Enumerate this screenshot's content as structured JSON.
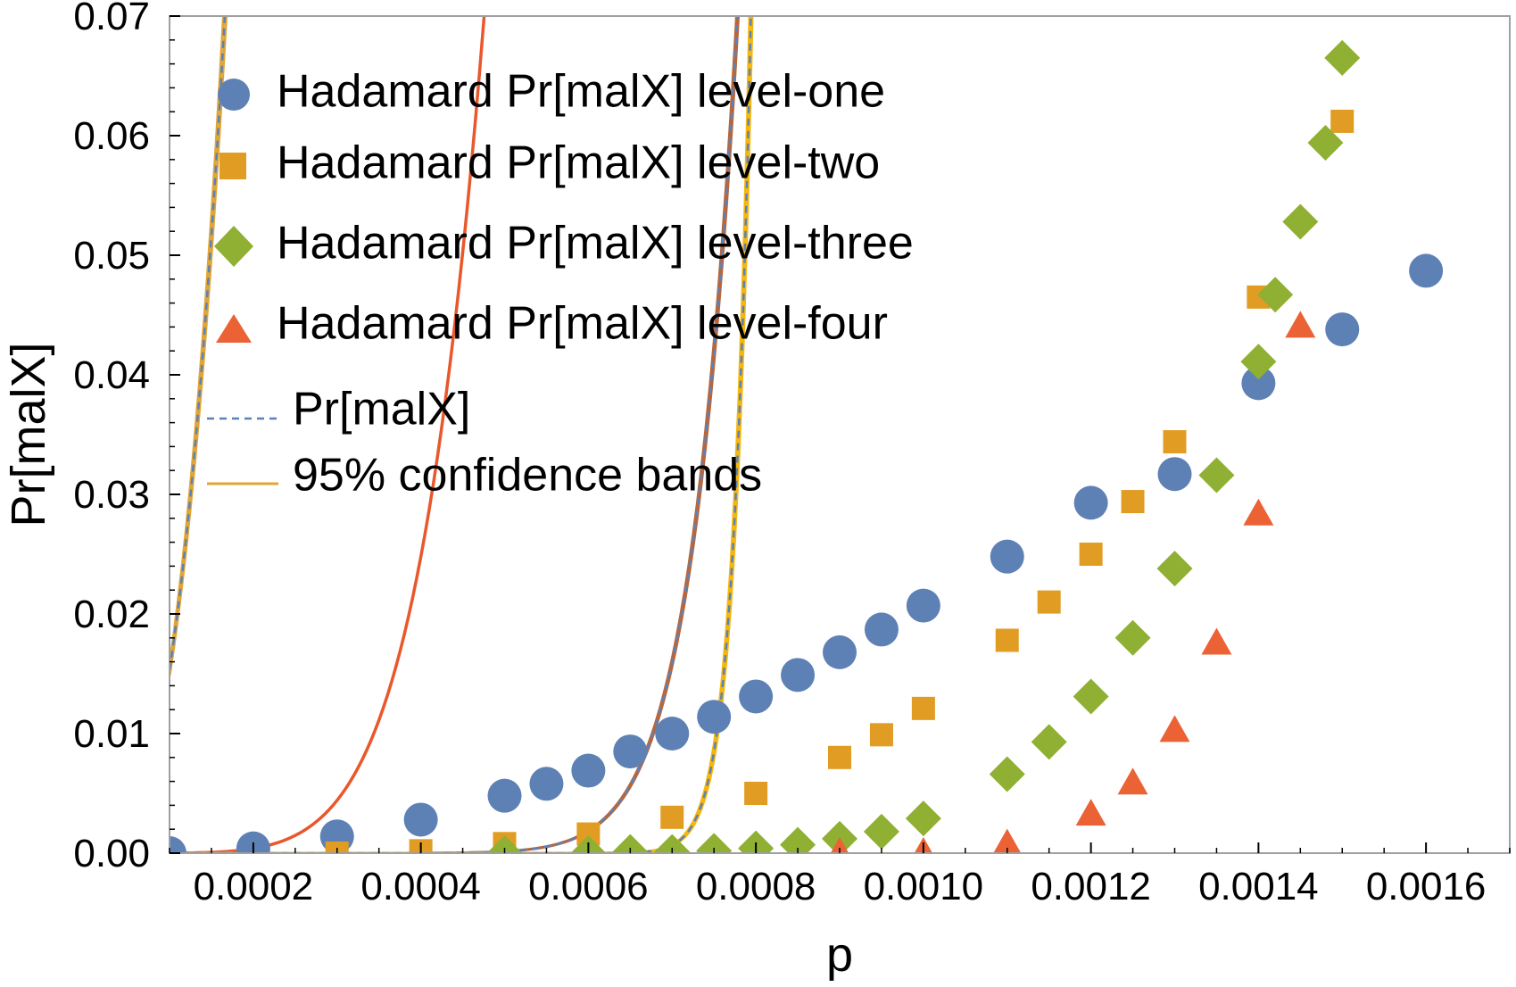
{
  "chart_data": {
    "type": "scatter",
    "xlabel": "p",
    "ylabel": "Pr[malX]",
    "xlim": [
      0.0001,
      0.0017
    ],
    "ylim": [
      0,
      0.07
    ],
    "x_ticks": [
      0.0002,
      0.0004,
      0.0006,
      0.0008,
      0.001,
      0.0012,
      0.0014,
      0.0016
    ],
    "x_tick_labels": [
      "0.0002",
      "0.0004",
      "0.0006",
      "0.0008",
      "0.0010",
      "0.0012",
      "0.0014",
      "0.0016"
    ],
    "y_ticks": [
      0,
      0.01,
      0.02,
      0.03,
      0.04,
      0.05,
      0.06,
      0.07
    ],
    "y_tick_labels": [
      "0.00",
      "0.01",
      "0.02",
      "0.03",
      "0.04",
      "0.05",
      "0.06",
      "0.07"
    ],
    "legend_position": "top-left",
    "series": [
      {
        "name": "Hadamard Pr[malX] level-one",
        "marker": "circle",
        "color": "#5E81B5",
        "fit_color": "#E1A535",
        "fit": {
          "a": 15300000000.0,
          "n": 3.0
        },
        "points": [
          [
            0.0001,
            0.0
          ],
          [
            0.0002,
            0.0004
          ],
          [
            0.0003,
            0.0014
          ],
          [
            0.0004,
            0.0028
          ],
          [
            0.0005,
            0.0048
          ],
          [
            0.00055,
            0.0058
          ],
          [
            0.0006,
            0.0069
          ],
          [
            0.00065,
            0.0085
          ],
          [
            0.0007,
            0.01
          ],
          [
            0.00075,
            0.0114
          ],
          [
            0.0008,
            0.0131
          ],
          [
            0.00085,
            0.0149
          ],
          [
            0.0009,
            0.0168
          ],
          [
            0.00095,
            0.0187
          ],
          [
            0.001,
            0.0207
          ],
          [
            0.0011,
            0.0248
          ],
          [
            0.0012,
            0.0293
          ],
          [
            0.0013,
            0.0317
          ],
          [
            0.0014,
            0.0393
          ],
          [
            0.0015,
            0.0438
          ],
          [
            0.0016,
            0.0487
          ]
        ]
      },
      {
        "name": "Hadamard Pr[malX] level-two",
        "marker": "square",
        "color": "#E19C24",
        "fit_color": "#E8582C",
        "fit": {
          "a": 6.05e+18,
          "n": 6.0
        },
        "points": [
          [
            0.0003,
            0.0
          ],
          [
            0.0004,
            0.0002
          ],
          [
            0.0005,
            0.0008
          ],
          [
            0.0006,
            0.0016
          ],
          [
            0.0007,
            0.003
          ],
          [
            0.0008,
            0.005
          ],
          [
            0.0009,
            0.008
          ],
          [
            0.00095,
            0.0099
          ],
          [
            0.001,
            0.0121
          ],
          [
            0.0011,
            0.0178
          ],
          [
            0.00115,
            0.021
          ],
          [
            0.0012,
            0.025
          ],
          [
            0.00125,
            0.0294
          ],
          [
            0.0013,
            0.0344
          ],
          [
            0.0014,
            0.0465
          ],
          [
            0.0015,
            0.0612
          ]
        ]
      },
      {
        "name": "Hadamard Pr[malX] level-three",
        "marker": "diamond",
        "color": "#8FB032",
        "fit_color": "#B8663A",
        "fit": {
          "a": 2.35e+42,
          "n": 14.0
        },
        "points": [
          [
            0.0005,
            0.0
          ],
          [
            0.0006,
            0.0
          ],
          [
            0.00065,
            0.0001
          ],
          [
            0.0007,
            0.0001
          ],
          [
            0.00075,
            0.0002
          ],
          [
            0.0008,
            0.0004
          ],
          [
            0.00085,
            0.0007
          ],
          [
            0.0009,
            0.0012
          ],
          [
            0.00095,
            0.0018
          ],
          [
            0.001,
            0.0029
          ],
          [
            0.0011,
            0.0066
          ],
          [
            0.00115,
            0.0093
          ],
          [
            0.0012,
            0.0131
          ],
          [
            0.00125,
            0.018
          ],
          [
            0.0013,
            0.0238
          ],
          [
            0.00135,
            0.0316
          ],
          [
            0.0014,
            0.0411
          ],
          [
            0.00142,
            0.0467
          ],
          [
            0.00145,
            0.0528
          ],
          [
            0.00148,
            0.0594
          ],
          [
            0.0015,
            0.0665
          ]
        ]
      },
      {
        "name": "Hadamard Pr[malX] level-four",
        "marker": "triangle",
        "color": "#EB6235",
        "fit_color": "#F5B70C",
        "fit": {
          "a": 3.55e+113,
          "n": 37.0
        },
        "points": [
          [
            0.0009,
            0.0
          ],
          [
            0.001,
            0.0
          ],
          [
            0.0011,
            0.0007
          ],
          [
            0.0012,
            0.0032
          ],
          [
            0.00125,
            0.0058
          ],
          [
            0.0013,
            0.0102
          ],
          [
            0.00135,
            0.0175
          ],
          [
            0.0014,
            0.0283
          ],
          [
            0.00145,
            0.044
          ]
        ]
      }
    ],
    "curves": {
      "model": "Pr[malX] = a * p^n",
      "mean_label": "Pr[malX]",
      "mean_color": "#5E81B5",
      "band_label": "95% confidence bands",
      "band_color": "#E1A535"
    }
  }
}
